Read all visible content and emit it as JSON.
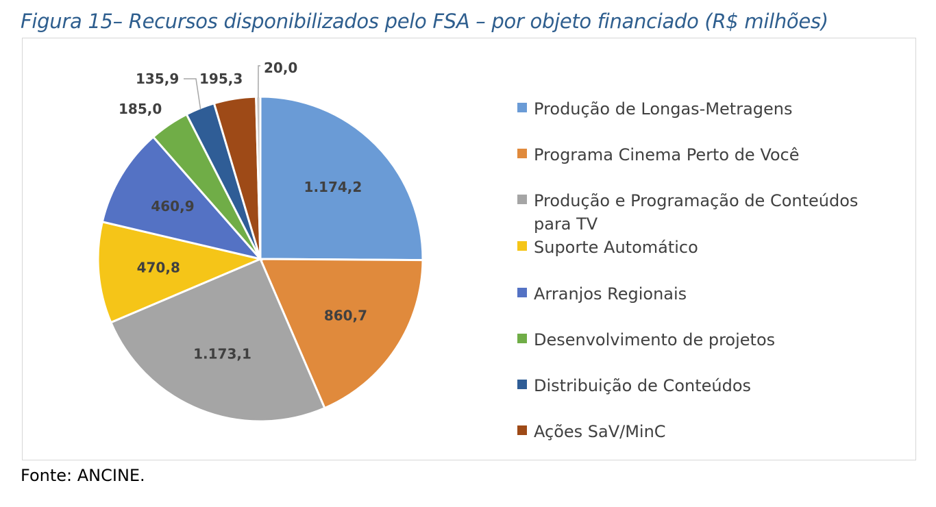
{
  "title": "Figura 15– Recursos disponibilizados pelo FSA – por objeto financiado (R$ milhões)",
  "source": "Fonte: ANCINE.",
  "chart_data": {
    "type": "pie",
    "slices": [
      {
        "label": "Produção de Longas-Metragens",
        "value": 1174.2,
        "display": "1.174,2",
        "color": "#6A9BD6"
      },
      {
        "label": "Programa Cinema Perto de Você",
        "value": 860.7,
        "display": "860,7",
        "color": "#E08A3C"
      },
      {
        "label": "Produção e Programação de Conteúdos para TV",
        "value": 1173.1,
        "display": "1.173,1",
        "color": "#A5A5A5"
      },
      {
        "label": "Suporte Automático",
        "value": 470.8,
        "display": "470,8",
        "color": "#F5C518"
      },
      {
        "label": "Arranjos Regionais",
        "value": 460.9,
        "display": "460,9",
        "color": "#5472C4"
      },
      {
        "label": "Desenvolvimento de projetos",
        "value": 185.0,
        "display": "185,0",
        "color": "#70AD47"
      },
      {
        "label": "Distribuição de Conteúdos",
        "value": 135.9,
        "display": "135,9",
        "color": "#2F5D96"
      },
      {
        "label": "Ações SaV/MinC",
        "value": 195.3,
        "display": "195,3",
        "color": "#9E4A17"
      },
      {
        "label": "",
        "value": 20.0,
        "display": "20,0",
        "color": "#C5C5C5"
      }
    ],
    "legend_position": "right"
  }
}
